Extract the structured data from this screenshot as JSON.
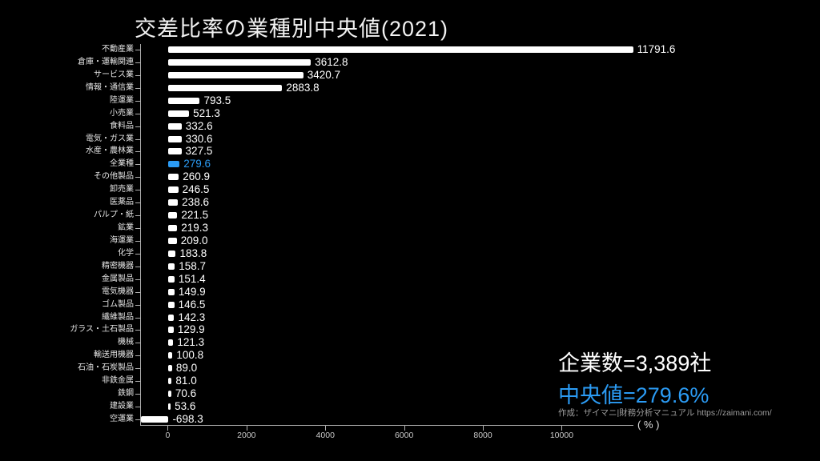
{
  "title": "交差比率の業種別中央値(2021)",
  "colors": {
    "background": "#000000",
    "bar": "#ffffff",
    "highlight": "#2B9BF4",
    "axis": "#a8a8a8"
  },
  "stats": {
    "companies": "企業数=3,389社",
    "median": "中央値=279.6%",
    "credit": "作成：ザイマニ|財務分析マニュアル https://zaimani.com/"
  },
  "chart_data": {
    "type": "bar",
    "orientation": "horizontal",
    "title": "交差比率の業種別中央値(2021)",
    "xlabel": "( % )",
    "xlim": [
      -700,
      11800
    ],
    "x_ticks": [
      0,
      2000,
      4000,
      6000,
      8000,
      10000
    ],
    "grid": false,
    "legend": false,
    "highlight_index": 9,
    "highlight_note": "全業種 row and its value are drawn in the highlight blue",
    "categories": [
      "不動産業",
      "倉庫・運輸関連",
      "サービス業",
      "情報・通信業",
      "陸運業",
      "小売業",
      "食料品",
      "電気・ガス業",
      "水産・農林業",
      "全業種",
      "その他製品",
      "卸売業",
      "医薬品",
      "パルプ・紙",
      "鉱業",
      "海運業",
      "化学",
      "精密機器",
      "金属製品",
      "電気機器",
      "ゴム製品",
      "繊維製品",
      "ガラス・土石製品",
      "機械",
      "輸送用機器",
      "石油・石炭製品",
      "非鉄金属",
      "鉄鋼",
      "建設業",
      "空運業"
    ],
    "values": [
      11791.6,
      3612.8,
      3420.7,
      2883.8,
      793.5,
      521.3,
      332.6,
      330.6,
      327.5,
      279.6,
      260.9,
      246.5,
      238.6,
      221.5,
      219.3,
      209.0,
      183.8,
      158.7,
      151.4,
      149.9,
      146.5,
      142.3,
      129.9,
      121.3,
      100.8,
      89.0,
      81.0,
      70.6,
      53.6,
      -698.3
    ]
  }
}
